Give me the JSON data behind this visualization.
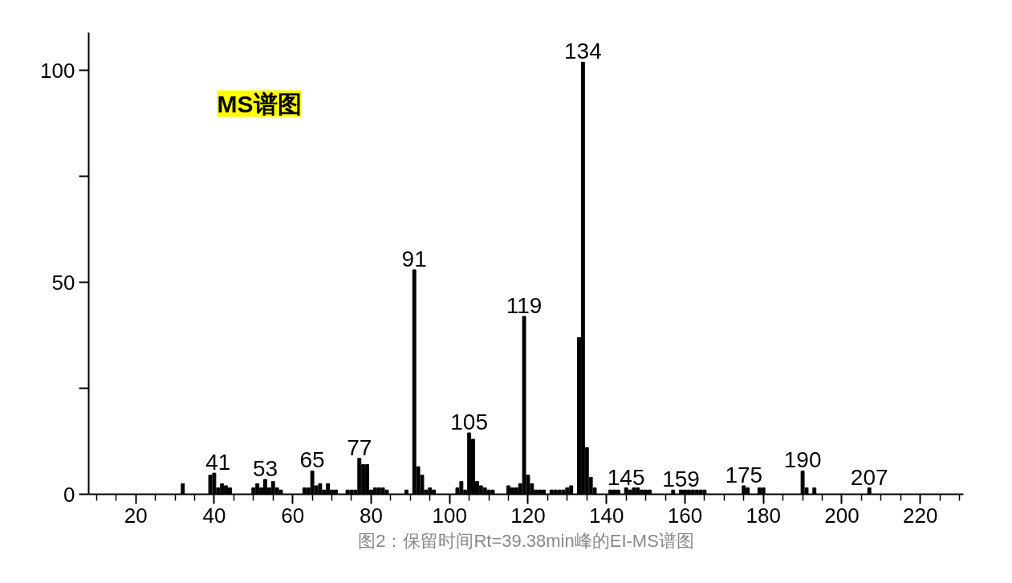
{
  "chart_data": {
    "type": "bar",
    "title": "MS谱图",
    "x": [
      32,
      39,
      40,
      41,
      42,
      43,
      44,
      50,
      51,
      52,
      53,
      54,
      55,
      56,
      57,
      63,
      64,
      65,
      66,
      67,
      68,
      69,
      70,
      71,
      74,
      75,
      76,
      77,
      78,
      79,
      80,
      81,
      82,
      83,
      84,
      89,
      91,
      92,
      93,
      94,
      95,
      96,
      102,
      103,
      104,
      105,
      106,
      107,
      108,
      109,
      110,
      111,
      115,
      116,
      117,
      118,
      119,
      120,
      121,
      122,
      123,
      124,
      126,
      127,
      128,
      129,
      130,
      131,
      133,
      134,
      135,
      136,
      137,
      141,
      142,
      143,
      145,
      146,
      147,
      148,
      149,
      150,
      151,
      157,
      159,
      160,
      161,
      162,
      163,
      164,
      165,
      175,
      176,
      179,
      180,
      190,
      191,
      193,
      207
    ],
    "values": [
      2.5,
      4.5,
      5,
      1.5,
      2.5,
      2,
      1.5,
      1.5,
      2.5,
      1.5,
      3.5,
      1.5,
      3,
      1.5,
      1,
      1.5,
      1.5,
      5.5,
      2,
      2.5,
      1,
      2.5,
      1,
      1,
      1,
      1,
      1,
      8.5,
      7,
      7,
      1,
      1.5,
      1.5,
      1.5,
      1,
      1,
      53,
      6.5,
      4.5,
      1,
      1.5,
      1,
      1.5,
      3,
      1,
      14.5,
      13,
      3,
      2,
      1.5,
      1,
      1,
      2,
      1.5,
      1.5,
      2.5,
      42,
      4.5,
      2.5,
      1,
      1,
      1,
      1,
      1,
      1,
      1,
      1.5,
      2,
      37,
      102,
      11,
      4,
      1.5,
      1,
      1,
      1,
      1.5,
      1,
      1.5,
      1.5,
      1,
      1,
      1,
      1,
      1,
      1,
      1,
      1,
      1,
      1,
      1,
      2,
      1.5,
      1.5,
      1.5,
      5.5,
      1.5,
      1.5,
      1.5
    ],
    "color": "#000000",
    "xlim": [
      8,
      231
    ],
    "ylim": [
      0,
      109
    ],
    "xticks": [
      {
        "value": 10,
        "label": null
      },
      {
        "value": 15,
        "label": null
      },
      20,
      {
        "value": 25,
        "label": null
      },
      {
        "value": 30,
        "label": null
      },
      {
        "value": 35,
        "label": null
      },
      40,
      {
        "value": 45,
        "label": null
      },
      {
        "value": 50,
        "label": null
      },
      {
        "value": 55,
        "label": null
      },
      60,
      {
        "value": 65,
        "label": null
      },
      {
        "value": 70,
        "label": null
      },
      {
        "value": 75,
        "label": null
      },
      80,
      {
        "value": 85,
        "label": null
      },
      {
        "value": 90,
        "label": null
      },
      {
        "value": 95,
        "label": null
      },
      100,
      {
        "value": 105,
        "label": null
      },
      {
        "value": 110,
        "label": null
      },
      {
        "value": 115,
        "label": null
      },
      120,
      {
        "value": 125,
        "label": null
      },
      {
        "value": 130,
        "label": null
      },
      {
        "value": 135,
        "label": null
      },
      140,
      {
        "value": 145,
        "label": null
      },
      {
        "value": 150,
        "label": null
      },
      {
        "value": 155,
        "label": null
      },
      160,
      {
        "value": 165,
        "label": null
      },
      {
        "value": 170,
        "label": null
      },
      {
        "value": 175,
        "label": null
      },
      180,
      {
        "value": 185,
        "label": null
      },
      {
        "value": 190,
        "label": null
      },
      {
        "value": 195,
        "label": null
      },
      200,
      {
        "value": 205,
        "label": null
      },
      {
        "value": 210,
        "label": null
      },
      {
        "value": 215,
        "label": null
      },
      220,
      {
        "value": 225,
        "label": null
      },
      {
        "value": 230,
        "label": null
      }
    ],
    "yticks": [
      0,
      {
        "value": 25,
        "label": null
      },
      50,
      {
        "value": 75,
        "label": null
      },
      100
    ],
    "grid": false,
    "annotations": [
      {
        "text": "41",
        "x": 41,
        "y": 5
      },
      {
        "text": "53",
        "x": 53,
        "y": 3.5
      },
      {
        "text": "65",
        "x": 65,
        "y": 5.5
      },
      {
        "text": "77",
        "x": 77,
        "y": 8.5
      },
      {
        "text": "91",
        "x": 91,
        "y": 53
      },
      {
        "text": "105",
        "x": 105,
        "y": 14.5
      },
      {
        "text": "119",
        "x": 119,
        "y": 42
      },
      {
        "text": "134",
        "x": 134,
        "y": 102
      },
      {
        "text": "145",
        "x": 145,
        "y": 1.5
      },
      {
        "text": "159",
        "x": 159,
        "y": 1
      },
      {
        "text": "175",
        "x": 175,
        "y": 2
      },
      {
        "text": "190",
        "x": 190,
        "y": 5.5
      },
      {
        "text": "207",
        "x": 207,
        "y": 1.5
      },
      "图2：保留时间Rt=39.38min峰的EI-MS谱图"
    ]
  }
}
